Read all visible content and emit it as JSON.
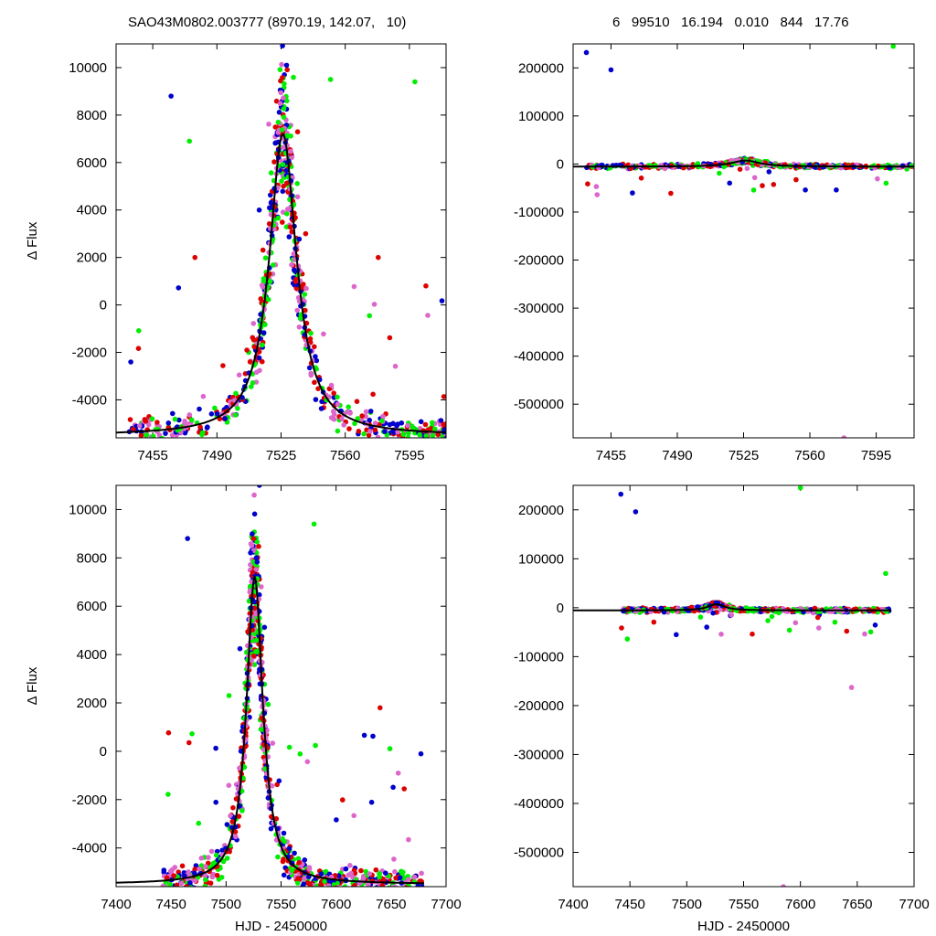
{
  "header": {
    "left_title": "SAO43M0802.003777 (8970.19, 142.07,   10)",
    "right_title": "6   99510   16.194   0.010   844   17.76"
  },
  "colors": {
    "green": "#00ee00",
    "violet": "#dd66cc",
    "red": "#dd0000",
    "blue": "#0000cc",
    "model": "#000000"
  },
  "chart_data": [
    {
      "type": "scatter",
      "panel": "top-left",
      "xlabel": "",
      "ylabel": "Δ Flux",
      "xlim": [
        7435,
        7615
      ],
      "ylim": [
        -5600,
        11000
      ],
      "xticks": [
        7455,
        7490,
        7525,
        7560,
        7595
      ],
      "yticks": [
        -4000,
        -2000,
        0,
        2000,
        4000,
        6000,
        8000,
        10000
      ],
      "model_curve": {
        "type": "lorentzian",
        "baseline": -5500,
        "amplitude": 12700,
        "center": 7526,
        "halfwidth": 9
      },
      "highlighted_points": [
        {
          "x": 7465,
          "y": 8800,
          "series": "blue"
        },
        {
          "x": 7475,
          "y": 6900,
          "series": "green"
        },
        {
          "x": 7478,
          "y": 2000,
          "series": "red"
        },
        {
          "x": 7528,
          "y": 10100,
          "series": "blue"
        },
        {
          "x": 7552,
          "y": 9500,
          "series": "green"
        },
        {
          "x": 7578,
          "y": 2000,
          "series": "red"
        },
        {
          "x": 7598,
          "y": 9400,
          "series": "green"
        },
        {
          "x": 7604,
          "y": 800,
          "series": "red"
        }
      ]
    },
    {
      "type": "scatter",
      "panel": "top-right",
      "xlabel": "",
      "ylabel": "",
      "xlim": [
        7435,
        7615
      ],
      "ylim": [
        -570000,
        250000
      ],
      "xticks": [
        7455,
        7490,
        7525,
        7560,
        7595
      ],
      "yticks": [
        -500000,
        -400000,
        -300000,
        -200000,
        -100000,
        0,
        100000,
        200000
      ],
      "model_curve": {
        "type": "lorentzian",
        "baseline": -5500,
        "amplitude": 12700,
        "center": 7526,
        "halfwidth": 9
      },
      "highlighted_points": [
        {
          "x": 7442,
          "y": 232000,
          "series": "blue"
        },
        {
          "x": 7455,
          "y": 196000,
          "series": "blue"
        },
        {
          "x": 7578,
          "y": -570000,
          "series": "violet"
        },
        {
          "x": 7604,
          "y": 245000,
          "series": "green"
        }
      ]
    },
    {
      "type": "scatter",
      "panel": "bottom-left",
      "xlabel": "HJD - 2450000",
      "ylabel": "Δ Flux",
      "xlim": [
        7400,
        7700
      ],
      "ylim": [
        -5600,
        11000
      ],
      "xticks": [
        7400,
        7450,
        7500,
        7550,
        7600,
        7650,
        7700
      ],
      "yticks": [
        -4000,
        -2000,
        0,
        2000,
        4000,
        6000,
        8000,
        10000
      ],
      "model_curve": {
        "type": "lorentzian",
        "baseline": -5500,
        "amplitude": 12700,
        "center": 7526,
        "halfwidth": 9
      },
      "highlighted_points": [
        {
          "x": 7465,
          "y": 8800,
          "series": "blue"
        },
        {
          "x": 7580,
          "y": 9400,
          "series": "green"
        },
        {
          "x": 7640,
          "y": 1800,
          "series": "red"
        }
      ]
    },
    {
      "type": "scatter",
      "panel": "bottom-right",
      "xlabel": "HJD - 2450000",
      "ylabel": "",
      "xlim": [
        7400,
        7700
      ],
      "ylim": [
        -570000,
        250000
      ],
      "xticks": [
        7400,
        7450,
        7500,
        7550,
        7600,
        7650,
        7700
      ],
      "yticks": [
        -500000,
        -400000,
        -300000,
        -200000,
        -100000,
        0,
        100000,
        200000
      ],
      "model_curve": {
        "type": "lorentzian",
        "baseline": -5500,
        "amplitude": 12700,
        "center": 7526,
        "halfwidth": 9
      },
      "highlighted_points": [
        {
          "x": 7442,
          "y": 232000,
          "series": "blue"
        },
        {
          "x": 7455,
          "y": 196000,
          "series": "blue"
        },
        {
          "x": 7600,
          "y": 245000,
          "series": "green"
        },
        {
          "x": 7645,
          "y": -163000,
          "series": "violet"
        },
        {
          "x": 7675,
          "y": 70000,
          "series": "green"
        },
        {
          "x": 7585,
          "y": -570000,
          "series": "violet"
        }
      ]
    }
  ]
}
